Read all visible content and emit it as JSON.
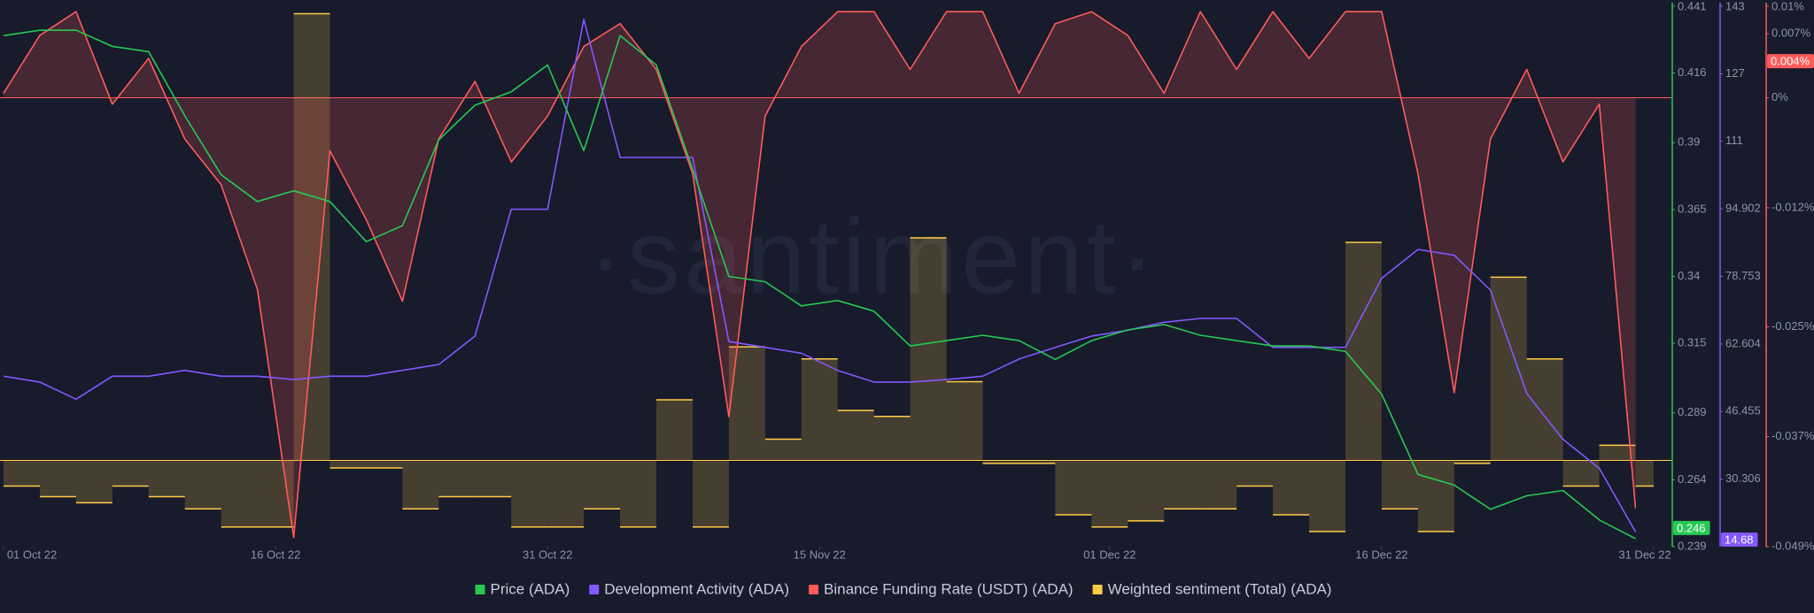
{
  "chart_data": {
    "type": "line",
    "watermark": "·santiment·",
    "x": [
      "2022-10-01",
      "2022-10-03",
      "2022-10-05",
      "2022-10-07",
      "2022-10-09",
      "2022-10-11",
      "2022-10-13",
      "2022-10-15",
      "2022-10-17",
      "2022-10-19",
      "2022-10-21",
      "2022-10-23",
      "2022-10-25",
      "2022-10-27",
      "2022-10-29",
      "2022-10-31",
      "2022-11-02",
      "2022-11-04",
      "2022-11-06",
      "2022-11-08",
      "2022-11-10",
      "2022-11-12",
      "2022-11-14",
      "2022-11-16",
      "2022-11-18",
      "2022-11-20",
      "2022-11-22",
      "2022-11-24",
      "2022-11-26",
      "2022-11-28",
      "2022-11-30",
      "2022-12-02",
      "2022-12-04",
      "2022-12-06",
      "2022-12-08",
      "2022-12-10",
      "2022-12-12",
      "2022-12-14",
      "2022-12-16",
      "2022-12-18",
      "2022-12-20",
      "2022-12-22",
      "2022-12-24",
      "2022-12-26",
      "2022-12-28",
      "2022-12-30"
    ],
    "xlim": [
      "2022-10-01",
      "2022-12-31"
    ],
    "xticks": [
      {
        "value": "2022-10-01",
        "label": "01 Oct 22"
      },
      {
        "value": "2022-10-16",
        "label": "16 Oct 22"
      },
      {
        "value": "2022-10-31",
        "label": "31 Oct 22"
      },
      {
        "value": "2022-11-15",
        "label": "15 Nov 22"
      },
      {
        "value": "2022-12-01",
        "label": "01 Dec 22"
      },
      {
        "value": "2022-12-16",
        "label": "16 Dec 22"
      },
      {
        "value": "2022-12-31",
        "label": "31 Dec 22"
      }
    ],
    "ylim": [
      0.239,
      0.441
    ],
    "yticks": [
      0.441,
      0.416,
      0.39,
      0.365,
      0.34,
      0.315,
      0.289,
      0.264,
      0.239
    ],
    "y2lim": [
      14.157,
      143.349
    ],
    "y2ticks": [
      {
        "value": 143.349,
        "label": "143"
      },
      {
        "value": 127.2,
        "label": "127"
      },
      {
        "value": 111.051,
        "label": "111"
      },
      94.902,
      78.753,
      62.604,
      46.455,
      30.306
    ],
    "y3lim": [
      -0.049,
      0.01
    ],
    "y3ticks": [
      {
        "value": 0.01,
        "label": "0.01%"
      },
      {
        "value": 0.007,
        "label": "0.007%"
      },
      {
        "value": 0,
        "label": "0%"
      },
      {
        "value": -0.012,
        "label": "-0.012%"
      },
      {
        "value": -0.025,
        "label": "-0.025%"
      },
      {
        "value": -0.037,
        "label": "-0.037%"
      },
      {
        "value": -0.049,
        "label": "-0.049%"
      }
    ],
    "y4lim": [
      -0.57,
      3
    ],
    "grid": false,
    "series": [
      {
        "name": "Price (ADA)",
        "color": "#26c953",
        "axis": "y",
        "style": "line",
        "current": 0.246,
        "values": [
          0.43,
          0.432,
          0.432,
          0.426,
          0.424,
          0.4,
          0.378,
          0.368,
          0.372,
          0.368,
          0.353,
          0.359,
          0.391,
          0.404,
          0.409,
          0.419,
          0.387,
          0.43,
          0.419,
          0.38,
          0.34,
          0.338,
          0.329,
          0.331,
          0.327,
          0.314,
          0.316,
          0.318,
          0.316,
          0.309,
          0.316,
          0.32,
          0.322,
          0.318,
          0.316,
          0.314,
          0.314,
          0.312,
          0.296,
          0.266,
          0.262,
          0.253,
          0.258,
          0.26,
          0.249,
          0.242
        ]
      },
      {
        "name": "Development Activity (ADA)",
        "color": "#8358ff",
        "axis": "y2",
        "style": "line",
        "current": 14.68,
        "values": [
          54.9,
          53.5,
          49.4,
          54.9,
          54.9,
          56.3,
          54.9,
          54.9,
          54.1,
          54.9,
          54.9,
          56.3,
          57.7,
          64.5,
          94.8,
          94.8,
          140.2,
          107.2,
          107.2,
          107.2,
          63.2,
          61.8,
          60.4,
          56.3,
          53.5,
          53.5,
          54.1,
          54.9,
          59.0,
          61.8,
          64.5,
          65.9,
          67.8,
          68.7,
          68.7,
          61.8,
          61.8,
          61.8,
          78.3,
          85.2,
          83.8,
          75.5,
          50.8,
          39.8,
          32.9,
          17.7
        ]
      },
      {
        "name": "Binance Funding Rate (USDT) (ADA)",
        "color": "#ff5b5b",
        "axis": "y3",
        "style": "area",
        "current": {
          "value": 0.004,
          "label": "0.004%"
        },
        "values": [
          0.0005,
          0.0068,
          0.0094,
          -0.0007,
          0.0043,
          -0.0045,
          -0.0095,
          -0.0209,
          -0.048,
          -0.0058,
          -0.0133,
          -0.0222,
          -0.0045,
          0.0018,
          -0.007,
          -0.002,
          0.0056,
          0.0081,
          0.0031,
          -0.0083,
          -0.0348,
          -0.002,
          0.0056,
          0.0094,
          0.0094,
          0.0031,
          0.0094,
          0.0094,
          0.0005,
          0.0081,
          0.0094,
          0.0068,
          0.0005,
          0.0094,
          0.0031,
          0.0094,
          0.0043,
          0.0094,
          0.0094,
          -0.0083,
          -0.0322,
          -0.0045,
          0.0031,
          -0.007,
          -0.0007,
          -0.0448
        ]
      },
      {
        "name": "Weighted sentiment (Total) (ADA)",
        "color": "#ffcb47",
        "axis": "y4",
        "style": "step",
        "values": [
          -0.17,
          -0.24,
          -0.28,
          -0.17,
          -0.24,
          -0.32,
          -0.44,
          -0.44,
          2.95,
          -0.05,
          -0.05,
          -0.32,
          -0.24,
          -0.24,
          -0.44,
          -0.44,
          -0.32,
          -0.44,
          0.4,
          -0.44,
          0.75,
          0.14,
          0.67,
          0.33,
          0.29,
          1.47,
          0.52,
          -0.02,
          -0.02,
          -0.36,
          -0.44,
          -0.4,
          -0.32,
          -0.32,
          -0.17,
          -0.36,
          -0.47,
          1.44,
          -0.32,
          -0.47,
          -0.02,
          1.21,
          0.67,
          -0.17,
          0.1,
          -0.17
        ]
      }
    ]
  }
}
